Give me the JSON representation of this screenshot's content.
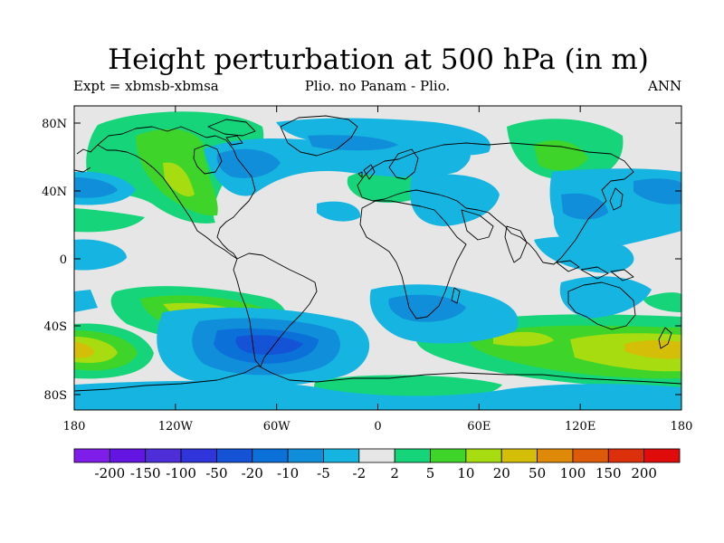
{
  "title": "Height perturbation at 500 hPa (in m)",
  "left_string": "Expt = xbmsb-xbmsa",
  "center_string": "Plio. no Panam - Plio.",
  "right_string": "ANN",
  "lat_labels": [
    "80N",
    "40N",
    "0",
    "40S",
    "80S"
  ],
  "lon_labels": [
    "180",
    "120W",
    "60W",
    "0",
    "60E",
    "120E",
    "180"
  ],
  "colorbar": {
    "levels": [
      "-200",
      "-150",
      "-100",
      "-50",
      "-20",
      "-10",
      "-5",
      "-2",
      "2",
      "5",
      "10",
      "20",
      "50",
      "100",
      "150",
      "200"
    ],
    "colors": [
      "#7e1ee8",
      "#6515e2",
      "#4e2ed9",
      "#2f35da",
      "#1452d6",
      "#0b70d8",
      "#108ed9",
      "#16b4e0",
      "#e6e6e6",
      "#16d47a",
      "#3fd42a",
      "#a6dc10",
      "#d4be08",
      "#de8a08",
      "#dc5a0a",
      "#dc300c",
      "#e00c0c"
    ]
  },
  "colors": {
    "background": "#e6e6e6",
    "coastline": "#000000"
  }
}
